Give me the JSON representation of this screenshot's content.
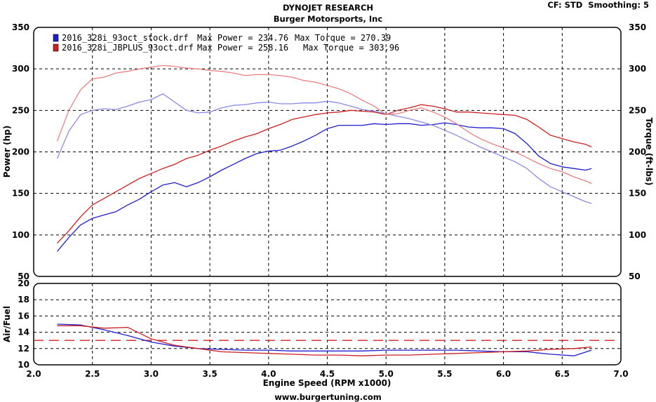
{
  "header": {
    "title": "DYNOJET RESEARCH",
    "subtitle": "Burger Motorsports, Inc",
    "settings": "CF: STD  Smoothing: 5"
  },
  "footer": {
    "url": "www.burgertuning.com"
  },
  "colors": {
    "stock": "#1f1fd0",
    "stock_light": "#8a8ae6",
    "plus": "#cc1f1f",
    "plus_light": "#e88080",
    "grid": "#000000",
    "afr_target": "#d42020"
  },
  "chart_data": [
    {
      "type": "line",
      "name": "power_torque",
      "xlabel": "Engine Speed (RPM x1000)",
      "ylabel": "Power (hp)",
      "y2label": "Torque (ft-lbs)",
      "xlim": [
        2.0,
        7.0
      ],
      "ylim": [
        50,
        350
      ],
      "y2lim": [
        50,
        350
      ],
      "xticks": [
        "2.0",
        "2.5",
        "3.0",
        "3.5",
        "4.0",
        "4.5",
        "5.0",
        "5.5",
        "6.0",
        "6.5",
        "7.0"
      ],
      "yticks": [
        "350",
        "300",
        "250",
        "200",
        "150",
        "100",
        "50"
      ],
      "y2ticks": [
        "350",
        "300",
        "250",
        "200",
        "150",
        "100",
        "50"
      ],
      "grid": true,
      "legend": [
        {
          "file": "2016_328i_93oct_stock.drf",
          "max_power_label": "Max Power = 234.76",
          "max_torque_label": "Max Torque = 270.39",
          "color": "#1f1fd0"
        },
        {
          "file": "2016_328i_JBPLUS_93oct.drf",
          "max_power_label": "Max Power = 258.16",
          "max_torque_label": "Max Torque = 303.96",
          "color": "#cc1f1f"
        }
      ],
      "series": [
        {
          "name": "2016_328i_93oct_stock.drf",
          "quantity": "power",
          "color": "#1f1fd0",
          "x": [
            2.2,
            2.3,
            2.4,
            2.5,
            2.6,
            2.7,
            2.8,
            2.9,
            3.0,
            3.1,
            3.2,
            3.3,
            3.4,
            3.5,
            3.6,
            3.7,
            3.8,
            3.9,
            4.0,
            4.1,
            4.2,
            4.3,
            4.4,
            4.5,
            4.6,
            4.7,
            4.8,
            4.9,
            5.0,
            5.1,
            5.2,
            5.3,
            5.4,
            5.5,
            5.6,
            5.7,
            5.8,
            5.9,
            6.0,
            6.1,
            6.2,
            6.3,
            6.4,
            6.5,
            6.6,
            6.7,
            6.75
          ],
          "y": [
            80,
            97,
            112,
            120,
            124,
            128,
            136,
            143,
            152,
            160,
            163,
            158,
            163,
            170,
            178,
            185,
            192,
            198,
            201,
            202,
            207,
            213,
            220,
            228,
            232,
            232,
            232,
            234,
            233,
            234,
            234,
            232,
            233,
            235,
            233,
            230,
            229,
            229,
            228,
            222,
            210,
            195,
            186,
            182,
            180,
            178,
            180
          ]
        },
        {
          "name": "2016_328i_JBPLUS_93oct.drf",
          "quantity": "power",
          "color": "#cc1f1f",
          "x": [
            2.2,
            2.3,
            2.4,
            2.5,
            2.6,
            2.7,
            2.8,
            2.9,
            3.0,
            3.1,
            3.2,
            3.3,
            3.4,
            3.5,
            3.6,
            3.7,
            3.8,
            3.9,
            4.0,
            4.1,
            4.2,
            4.3,
            4.4,
            4.5,
            4.6,
            4.7,
            4.8,
            4.9,
            5.0,
            5.1,
            5.2,
            5.3,
            5.4,
            5.5,
            5.6,
            5.7,
            5.8,
            5.9,
            6.0,
            6.1,
            6.2,
            6.3,
            6.4,
            6.5,
            6.6,
            6.7,
            6.75
          ],
          "y": [
            90,
            105,
            122,
            136,
            144,
            152,
            160,
            168,
            174,
            180,
            185,
            192,
            196,
            202,
            207,
            213,
            218,
            222,
            228,
            233,
            239,
            242,
            245,
            247,
            248,
            250,
            249,
            248,
            245,
            250,
            253,
            257,
            255,
            252,
            248,
            248,
            247,
            246,
            245,
            244,
            239,
            230,
            220,
            216,
            212,
            209,
            206
          ]
        },
        {
          "name": "2016_328i_93oct_stock.drf",
          "quantity": "torque",
          "color": "#8a8ae6",
          "x": [
            2.2,
            2.3,
            2.4,
            2.5,
            2.6,
            2.7,
            2.8,
            2.9,
            3.0,
            3.1,
            3.2,
            3.3,
            3.4,
            3.5,
            3.6,
            3.7,
            3.8,
            3.9,
            4.0,
            4.1,
            4.2,
            4.3,
            4.4,
            4.5,
            4.6,
            4.7,
            4.8,
            4.9,
            5.0,
            5.1,
            5.2,
            5.3,
            5.4,
            5.5,
            5.6,
            5.7,
            5.8,
            5.9,
            6.0,
            6.1,
            6.2,
            6.3,
            6.4,
            6.5,
            6.6,
            6.7,
            6.75
          ],
          "y": [
            192,
            225,
            245,
            250,
            252,
            251,
            255,
            260,
            263,
            270,
            260,
            250,
            247,
            248,
            253,
            256,
            257,
            259,
            260,
            258,
            258,
            259,
            259,
            261,
            259,
            255,
            251,
            249,
            246,
            243,
            240,
            236,
            232,
            226,
            220,
            213,
            206,
            200,
            194,
            188,
            180,
            168,
            158,
            152,
            146,
            140,
            138
          ]
        },
        {
          "name": "2016_328i_JBPLUS_93oct.drf",
          "quantity": "torque",
          "color": "#e88080",
          "x": [
            2.2,
            2.3,
            2.4,
            2.5,
            2.6,
            2.7,
            2.8,
            2.9,
            3.0,
            3.1,
            3.2,
            3.3,
            3.4,
            3.5,
            3.6,
            3.7,
            3.8,
            3.9,
            4.0,
            4.1,
            4.2,
            4.3,
            4.4,
            4.5,
            4.6,
            4.7,
            4.8,
            4.9,
            5.0,
            5.1,
            5.2,
            5.3,
            5.4,
            5.5,
            5.6,
            5.7,
            5.8,
            5.9,
            6.0,
            6.1,
            6.2,
            6.3,
            6.4,
            6.5,
            6.6,
            6.7,
            6.75
          ],
          "y": [
            213,
            250,
            275,
            288,
            290,
            295,
            297,
            300,
            302,
            304,
            303,
            301,
            300,
            298,
            297,
            295,
            292,
            293,
            293,
            292,
            290,
            286,
            284,
            280,
            276,
            270,
            262,
            255,
            245,
            246,
            250,
            253,
            248,
            242,
            234,
            224,
            216,
            210,
            205,
            200,
            193,
            186,
            180,
            176,
            170,
            165,
            162
          ]
        }
      ]
    },
    {
      "type": "line",
      "name": "air_fuel",
      "xlabel": "Engine Speed (RPM x1000)",
      "ylabel": "Air/Fuel",
      "xlim": [
        2.0,
        7.0
      ],
      "ylim": [
        10,
        20
      ],
      "xticks": [
        "2.0",
        "2.5",
        "3.0",
        "3.5",
        "4.0",
        "4.5",
        "5.0",
        "5.5",
        "6.0",
        "6.5",
        "7.0"
      ],
      "yticks": [
        "20",
        "18",
        "16",
        "14",
        "12",
        "10"
      ],
      "grid": true,
      "reference_line": {
        "y": 13.0,
        "style": "dashed",
        "color": "#d42020"
      },
      "series": [
        {
          "name": "2016_328i_93oct_stock.drf",
          "color": "#1f1fd0",
          "x": [
            2.2,
            2.4,
            2.6,
            2.8,
            3.0,
            3.2,
            3.4,
            3.6,
            3.8,
            4.0,
            4.2,
            4.4,
            4.6,
            4.8,
            5.0,
            5.2,
            5.4,
            5.6,
            5.8,
            6.0,
            6.2,
            6.4,
            6.6,
            6.75
          ],
          "y": [
            15.0,
            14.9,
            14.3,
            13.6,
            12.8,
            12.3,
            12.0,
            11.9,
            11.8,
            11.8,
            11.7,
            11.7,
            11.7,
            11.7,
            11.8,
            11.8,
            11.8,
            11.8,
            11.7,
            11.6,
            11.6,
            11.3,
            11.1,
            11.8
          ]
        },
        {
          "name": "2016_328i_JBPLUS_93oct.drf",
          "color": "#cc1f1f",
          "x": [
            2.2,
            2.4,
            2.6,
            2.8,
            3.0,
            3.2,
            3.4,
            3.6,
            3.8,
            4.0,
            4.2,
            4.4,
            4.6,
            4.8,
            5.0,
            5.2,
            5.4,
            5.6,
            5.8,
            6.0,
            6.2,
            6.4,
            6.6,
            6.75
          ],
          "y": [
            14.8,
            14.8,
            14.5,
            14.6,
            13.2,
            12.4,
            12.0,
            11.6,
            11.5,
            11.4,
            11.3,
            11.2,
            11.2,
            11.1,
            11.2,
            11.2,
            11.3,
            11.4,
            11.5,
            11.6,
            11.7,
            11.9,
            12.0,
            12.2
          ]
        }
      ]
    }
  ]
}
